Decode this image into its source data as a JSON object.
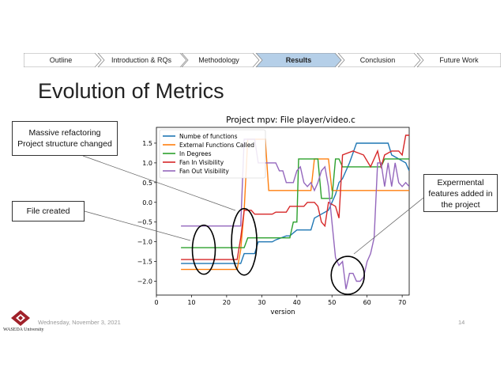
{
  "nav": {
    "items": [
      {
        "label": "Outline",
        "active": false
      },
      {
        "label": "Introduction & RQs",
        "active": false
      },
      {
        "label": "Methodology",
        "active": false
      },
      {
        "label": "Results",
        "active": true
      },
      {
        "label": "Conclusion",
        "active": false
      },
      {
        "label": "Future Work",
        "active": false
      }
    ],
    "active_color": "#b5cfe8",
    "inactive_color": "#ffffff"
  },
  "slide": {
    "title": "Evolution of Metrics"
  },
  "callouts": {
    "refactoring": "Massive refactoring\nProject structure changed",
    "created": "File created",
    "experimental": "Expermental\nfeatures added in\nthe project"
  },
  "footer": {
    "date": "Wednesday, November 3, 2021",
    "page": "14",
    "logo_text": "WASEDA University"
  },
  "chart_data": {
    "type": "line",
    "title": "Project mpv: File player/video.c",
    "xlabel": "version",
    "ylabel": "",
    "xlim": [
      0,
      72
    ],
    "ylim": [
      -2.35,
      1.9
    ],
    "xticks": [
      0,
      10,
      20,
      30,
      40,
      50,
      60,
      70
    ],
    "yticks": [
      -2.0,
      -1.5,
      -1.0,
      -0.5,
      0.0,
      0.5,
      1.0,
      1.5
    ],
    "ytick_labels": [
      "−2.0",
      "−1.5",
      "−1.0",
      "−0.5",
      "0.0",
      "0.5",
      "1.0",
      "1.5"
    ],
    "legend_position": "top-left",
    "series": [
      {
        "name": "Numbe of functions",
        "color": "#1f77b4",
        "points": [
          [
            7,
            -1.55
          ],
          [
            22,
            -1.55
          ],
          [
            24,
            -1.55
          ],
          [
            25,
            -1.3
          ],
          [
            28,
            -1.3
          ],
          [
            29,
            -1.0
          ],
          [
            33,
            -1.0
          ],
          [
            34,
            -0.95
          ],
          [
            37,
            -0.85
          ],
          [
            38,
            -0.85
          ],
          [
            40,
            -0.7
          ],
          [
            44,
            -0.7
          ],
          [
            45,
            -0.4
          ],
          [
            47,
            -0.3
          ],
          [
            49,
            -0.2
          ],
          [
            51,
            0.2
          ],
          [
            52,
            0.5
          ],
          [
            53,
            0.6
          ],
          [
            55,
            1.0
          ],
          [
            57,
            1.5
          ],
          [
            62,
            1.5
          ],
          [
            66,
            1.5
          ],
          [
            67,
            1.2
          ],
          [
            71,
            1.0
          ],
          [
            72,
            0.8
          ]
        ]
      },
      {
        "name": "External Functions Called",
        "color": "#ff7f0e",
        "points": [
          [
            7,
            -1.7
          ],
          [
            23,
            -1.7
          ],
          [
            24,
            -1.2
          ],
          [
            25,
            -0.2
          ],
          [
            26,
            1.6
          ],
          [
            30,
            1.6
          ],
          [
            31,
            1.6
          ],
          [
            32,
            0.3
          ],
          [
            44,
            0.3
          ],
          [
            45,
            1.1
          ],
          [
            49,
            1.1
          ],
          [
            50,
            0.3
          ],
          [
            72,
            0.3
          ]
        ]
      },
      {
        "name": "In Degrees",
        "color": "#2ca02c",
        "points": [
          [
            7,
            -1.15
          ],
          [
            24,
            -1.15
          ],
          [
            25,
            -1.15
          ],
          [
            26,
            -0.9
          ],
          [
            38,
            -0.9
          ],
          [
            39,
            -0.5
          ],
          [
            40,
            -0.5
          ],
          [
            40.5,
            1.1
          ],
          [
            46,
            1.1
          ],
          [
            47,
            0.1
          ],
          [
            50,
            0.1
          ],
          [
            51,
            1.1
          ],
          [
            52,
            1.1
          ],
          [
            53,
            0.9
          ],
          [
            64,
            0.9
          ],
          [
            65,
            1.1
          ],
          [
            72,
            1.1
          ]
        ]
      },
      {
        "name": "Fan In Visibility",
        "color": "#d62728",
        "points": [
          [
            7,
            -1.45
          ],
          [
            23,
            -1.45
          ],
          [
            24,
            -0.9
          ],
          [
            25,
            -0.2
          ],
          [
            27,
            -0.2
          ],
          [
            28,
            -0.3
          ],
          [
            33,
            -0.3
          ],
          [
            34,
            -0.25
          ],
          [
            37,
            -0.25
          ],
          [
            38,
            -0.1
          ],
          [
            42,
            -0.1
          ],
          [
            43,
            0.0
          ],
          [
            45,
            0.0
          ],
          [
            46,
            -0.1
          ],
          [
            47,
            -0.5
          ],
          [
            48,
            -0.6
          ],
          [
            49,
            0.0
          ],
          [
            51,
            -0.1
          ],
          [
            52,
            -0.4
          ],
          [
            53,
            1.2
          ],
          [
            56,
            1.3
          ],
          [
            59,
            1.2
          ],
          [
            61,
            0.9
          ],
          [
            63,
            1.3
          ],
          [
            64,
            0.9
          ],
          [
            65,
            1.2
          ],
          [
            67,
            1.3
          ],
          [
            69,
            1.3
          ],
          [
            70,
            1.2
          ],
          [
            71,
            1.7
          ],
          [
            72,
            1.7
          ]
        ]
      },
      {
        "name": "Fan Out Visibility",
        "color": "#9467bd",
        "points": [
          [
            7,
            -0.6
          ],
          [
            23,
            -0.6
          ],
          [
            24,
            -0.6
          ],
          [
            25,
            1.6
          ],
          [
            28,
            1.6
          ],
          [
            29,
            1.0
          ],
          [
            34,
            1.0
          ],
          [
            35,
            0.8
          ],
          [
            36,
            0.8
          ],
          [
            37,
            0.5
          ],
          [
            39,
            0.5
          ],
          [
            40,
            0.8
          ],
          [
            41,
            0.9
          ],
          [
            42,
            0.5
          ],
          [
            43,
            0.4
          ],
          [
            44,
            0.5
          ],
          [
            45,
            0.3
          ],
          [
            46,
            0.5
          ],
          [
            47,
            0.8
          ],
          [
            48,
            0.9
          ],
          [
            49,
            0.4
          ],
          [
            50,
            -0.5
          ],
          [
            51,
            -1.4
          ],
          [
            52,
            -1.6
          ],
          [
            53,
            -1.5
          ],
          [
            54,
            -2.2
          ],
          [
            55,
            -1.8
          ],
          [
            56,
            -1.8
          ],
          [
            57,
            -2.0
          ],
          [
            58,
            -2.0
          ],
          [
            59,
            -1.9
          ],
          [
            60,
            -1.5
          ],
          [
            61,
            -1.3
          ],
          [
            62,
            -0.9
          ],
          [
            63,
            1.0
          ],
          [
            64,
            1.0
          ],
          [
            65,
            0.4
          ],
          [
            66,
            1.0
          ],
          [
            67,
            0.4
          ],
          [
            68,
            1.0
          ],
          [
            69,
            0.5
          ],
          [
            70,
            0.4
          ],
          [
            71,
            0.5
          ],
          [
            72,
            0.4
          ]
        ]
      }
    ]
  }
}
